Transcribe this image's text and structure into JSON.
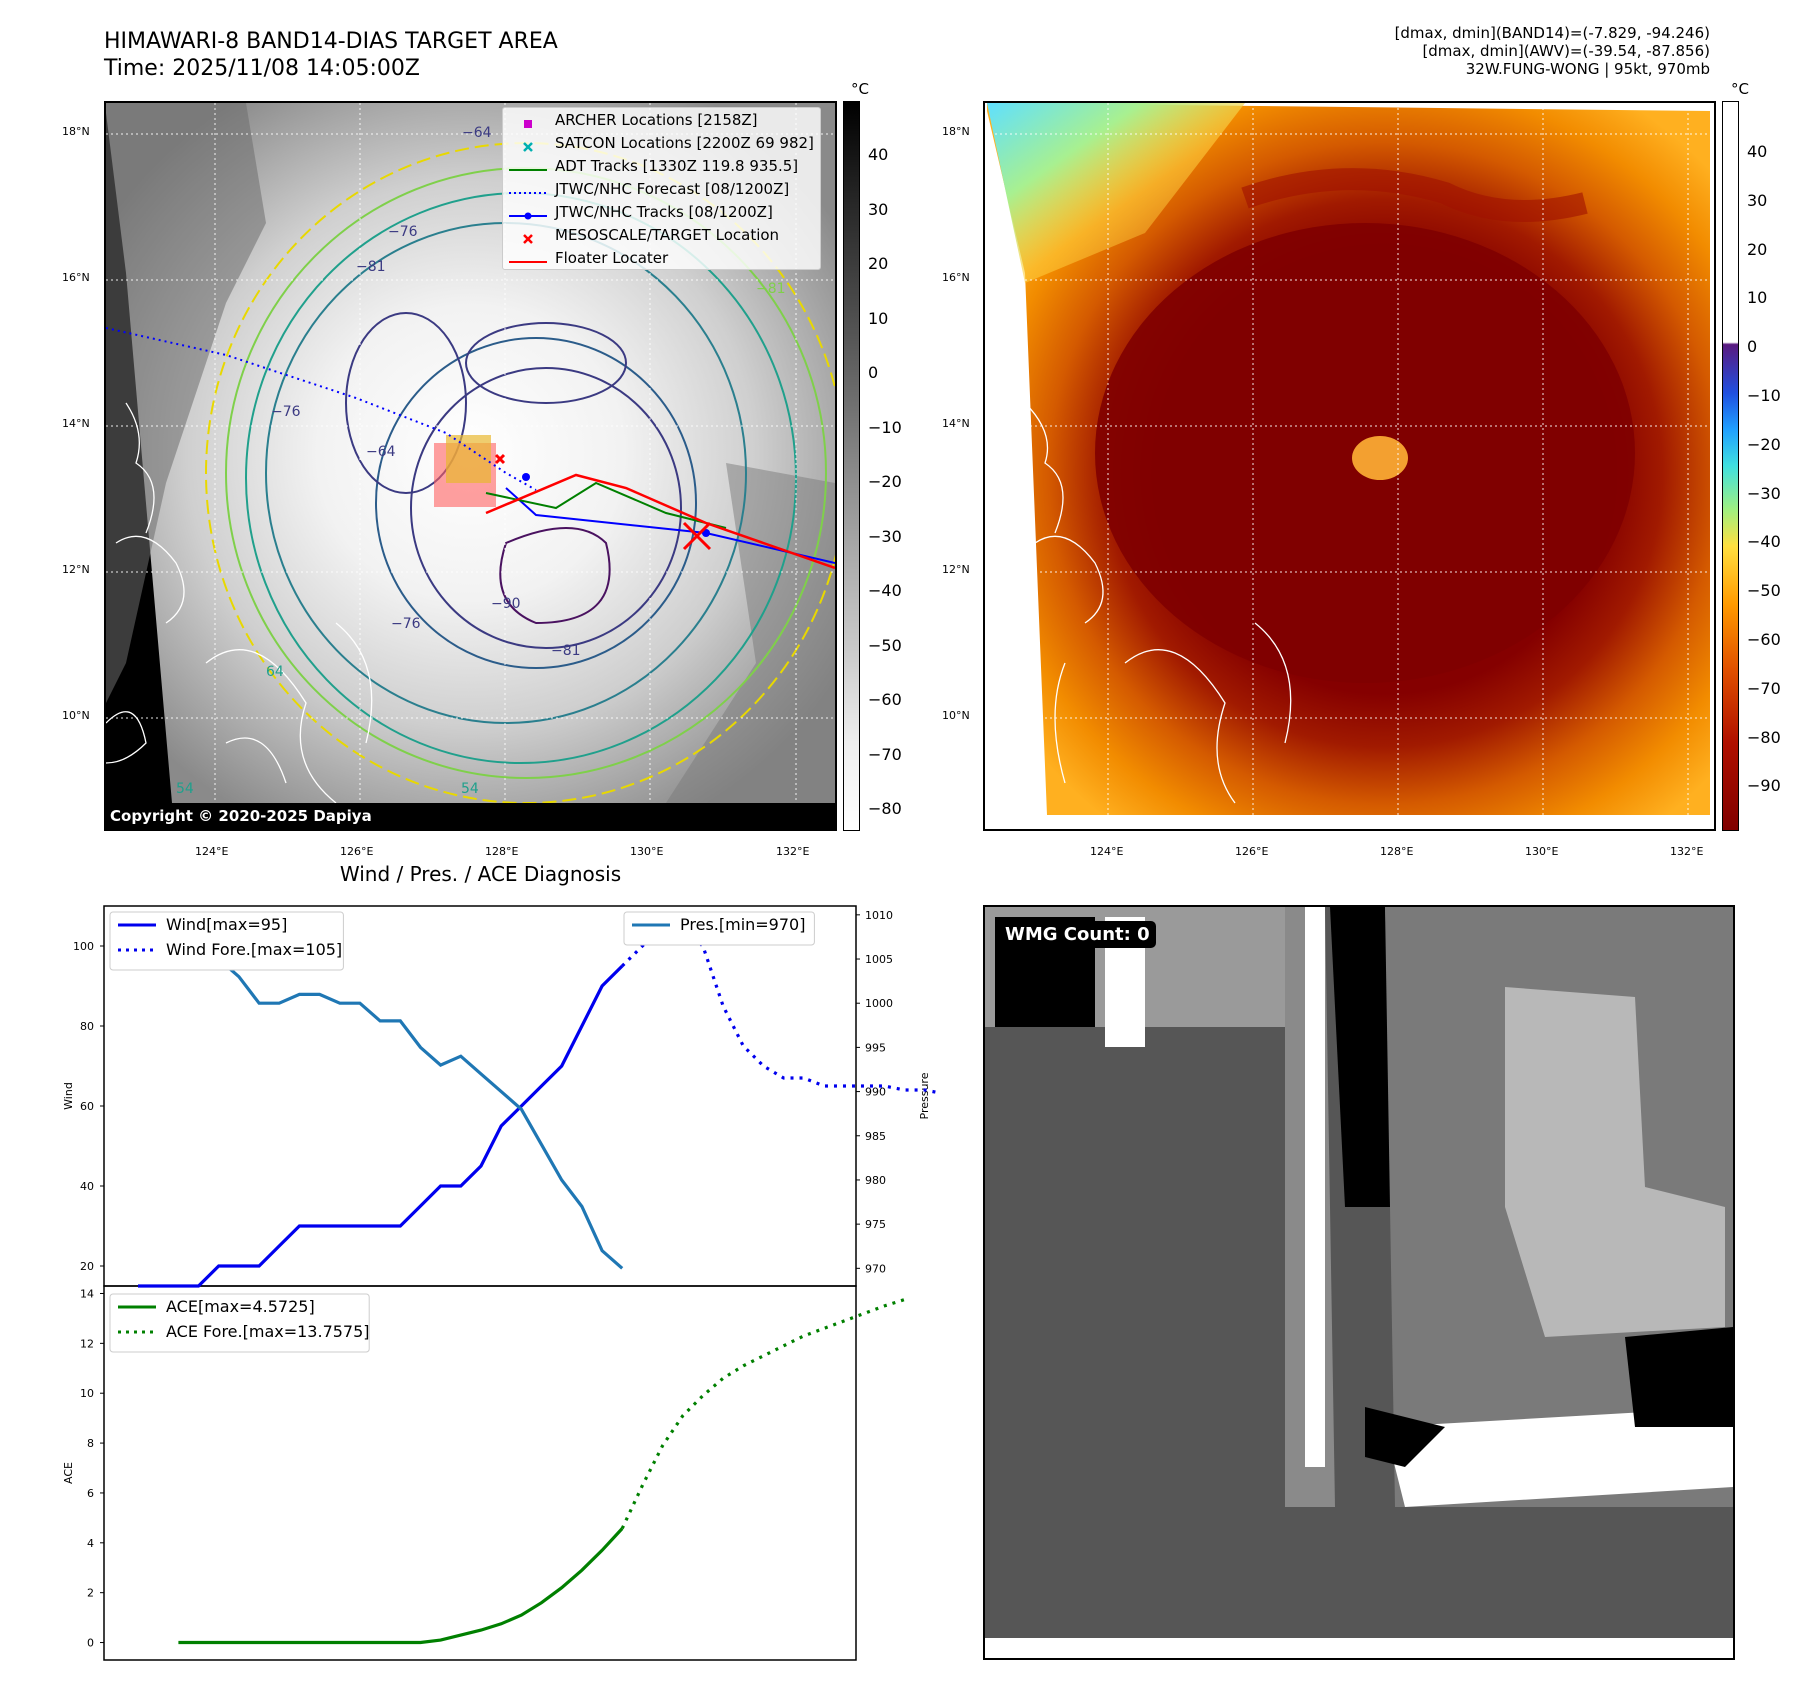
{
  "header": {
    "title": "HIMAWARI-8 BAND14-DIAS TARGET AREA",
    "time": "Time: 2025/11/08 14:05:00Z",
    "info_line1": "[dmax, dmin](BAND14)=(-7.829, -94.246)",
    "info_line2": "[dmax, dmin](AWV)=(-39.54, -87.856)",
    "info_line3": "32W.FUNG-WONG | 95kt, 970mb"
  },
  "ir_panel": {
    "unit": "°C",
    "lat_labels": [
      "18°N",
      "16°N",
      "14°N",
      "12°N",
      "10°N"
    ],
    "lon_labels": [
      "124°E",
      "126°E",
      "128°E",
      "130°E",
      "132°E"
    ],
    "colorbar_ticks": [
      "40",
      "30",
      "20",
      "10",
      "0",
      "−10",
      "−20",
      "−30",
      "−40",
      "−50",
      "−60",
      "−70",
      "−80"
    ],
    "copyright": "Copyright © 2020-2025 Dapiya",
    "contour_labels": [
      "−64",
      "−76",
      "−81",
      "−90",
      "−76",
      "−81",
      "64",
      "−64",
      "−76",
      "54",
      "54",
      "−81"
    ],
    "legend": [
      {
        "label": "ARCHER Locations [2158Z]",
        "color": "#cc00cc",
        "symbol": "square"
      },
      {
        "label": "SATCON Locations [2200Z 69 982]",
        "color": "#00b0b0",
        "symbol": "x"
      },
      {
        "label": "ADT Tracks [1330Z 119.8 935.5]",
        "color": "#008000",
        "symbol": "line"
      },
      {
        "label": "JTWC/NHC Forecast [08/1200Z]",
        "color": "#0000ff",
        "symbol": "dotted"
      },
      {
        "label": "JTWC/NHC Tracks [08/1200Z]",
        "color": "#0000ff",
        "symbol": "linedot"
      },
      {
        "label": "MESOSCALE/TARGET Location",
        "color": "#ff0000",
        "symbol": "x"
      },
      {
        "label": "Floater Locater",
        "color": "#ff0000",
        "symbol": "line"
      }
    ]
  },
  "awv_panel": {
    "unit": "°C",
    "colorbar_ticks": [
      "40",
      "30",
      "20",
      "10",
      "0",
      "−10",
      "−20",
      "−30",
      "−40",
      "−50",
      "−60",
      "−70",
      "−80",
      "−90"
    ]
  },
  "diag": {
    "title": "Wind / Pres. / ACE Diagnosis",
    "wind_axis_label": "Wind",
    "pres_axis_label": "Pressure",
    "ace_axis_label": "ACE",
    "legend_wind": "Wind[max=95]",
    "legend_wind_fore": "Wind Fore.[max=105]",
    "legend_pres": "Pres.[min=970]",
    "legend_ace": "ACE[max=4.5725]",
    "legend_ace_fore": "ACE Fore.[max=13.7575]"
  },
  "wmg": {
    "label": "WMG Count: 0"
  },
  "colors": {
    "wind": "#0000ee",
    "pressure": "#1f77b4",
    "ace": "#008000",
    "floater": "#ff0000"
  },
  "chart_data": [
    {
      "type": "line",
      "ylabel": "Wind",
      "ylim": [
        15,
        110
      ],
      "yticks": [
        20,
        40,
        60,
        80,
        100
      ],
      "series": [
        {
          "name": "Wind[max=95]",
          "values": [
            15,
            15,
            15,
            15,
            20,
            20,
            20,
            25,
            30,
            30,
            30,
            30,
            30,
            30,
            35,
            40,
            40,
            45,
            55,
            60,
            65,
            70,
            80,
            90,
            95
          ]
        },
        {
          "name": "Wind Fore.[max=105]",
          "values": [
            95,
            100,
            105,
            104,
            100,
            85,
            75,
            70,
            67,
            67,
            65,
            65,
            65,
            65,
            64,
            64,
            63
          ]
        }
      ]
    },
    {
      "type": "line",
      "ylabel": "Pressure",
      "ylim": [
        968,
        1011
      ],
      "yticks": [
        970,
        975,
        980,
        985,
        990,
        995,
        1000,
        1005,
        1010
      ],
      "series": [
        {
          "name": "Pres.[min=970]",
          "values": [
            1009,
            1007,
            1006,
            1006,
            1005,
            1003,
            1000,
            1000,
            1001,
            1001,
            1000,
            1000,
            998,
            998,
            995,
            993,
            994,
            992,
            990,
            988,
            984,
            980,
            977,
            972,
            970
          ]
        }
      ]
    },
    {
      "type": "line",
      "ylabel": "ACE",
      "ylim": [
        -0.7,
        14.3
      ],
      "yticks": [
        0,
        2,
        4,
        6,
        8,
        10,
        12,
        14
      ],
      "series": [
        {
          "name": "ACE[max=4.5725]",
          "values": [
            0,
            0,
            0,
            0,
            0,
            0,
            0,
            0,
            0,
            0,
            0,
            0,
            0,
            0.1,
            0.3,
            0.5,
            0.75,
            1.1,
            1.6,
            2.2,
            2.9,
            3.7,
            4.5725
          ]
        },
        {
          "name": "ACE Fore.[max=13.7575]",
          "values": [
            4.5725,
            6.3,
            7.9,
            9.1,
            9.9,
            10.6,
            11.1,
            11.5,
            11.9,
            12.3,
            12.6,
            12.9,
            13.2,
            13.5,
            13.7575
          ]
        }
      ]
    }
  ]
}
